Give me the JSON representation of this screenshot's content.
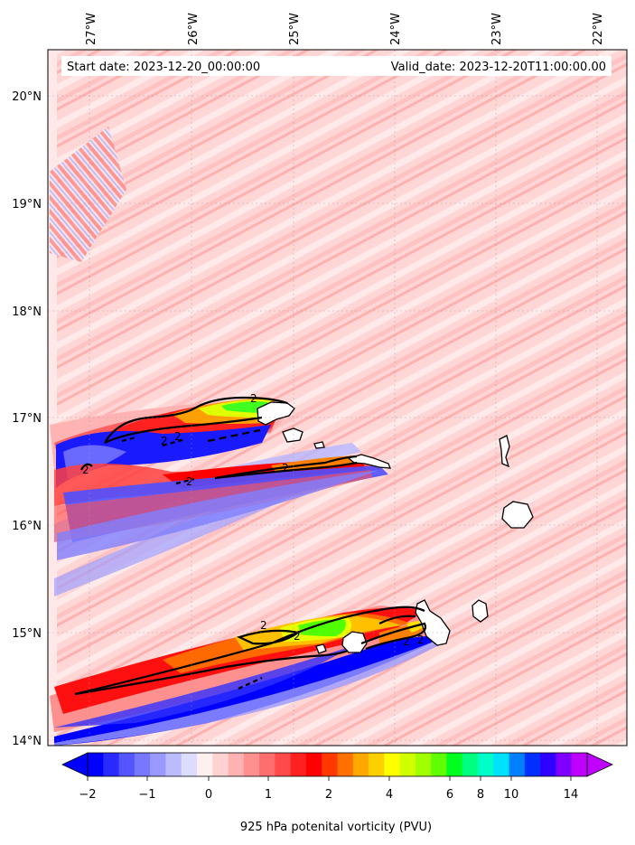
{
  "header": {
    "start_date": "Start date: 2023-12-20_00:00:00",
    "valid_date": "Valid_date: 2023-12-20T11:00:00.00"
  },
  "axes": {
    "lon_labels": [
      "27°W",
      "26°W",
      "25°W",
      "24°W",
      "23°W",
      "22°W"
    ],
    "lat_labels": [
      "20°N",
      "19°N",
      "18°N",
      "17°N",
      "16°N",
      "15°N",
      "14°N"
    ]
  },
  "colorbar": {
    "tick_labels": [
      "−2",
      "−1",
      "0",
      "1",
      "2",
      "4",
      "6",
      "8",
      "10",
      "14"
    ],
    "title": "925 hPa potenital vorticity (PVU)",
    "colors": [
      "#0000ff",
      "#2a2aff",
      "#5555ff",
      "#7777ff",
      "#9999ff",
      "#bbbbff",
      "#dcdcff",
      "#fff0f0",
      "#ffd2d2",
      "#ffb2b2",
      "#ff9090",
      "#ff6e6e",
      "#ff4a4a",
      "#ff2020",
      "#ff0000",
      "#ff3800",
      "#ff7000",
      "#ffa800",
      "#ffd000",
      "#ffff00",
      "#d0ff00",
      "#a0ff00",
      "#60ff00",
      "#00ff20",
      "#00ff80",
      "#00ffc8",
      "#00e0ff",
      "#0080ff",
      "#0030ff",
      "#3000ff",
      "#8000ff",
      "#c000ff"
    ]
  },
  "contour_labels": [
    "2",
    "2",
    "2",
    "2",
    "2",
    "2",
    "2",
    "2",
    "2",
    "2"
  ]
}
